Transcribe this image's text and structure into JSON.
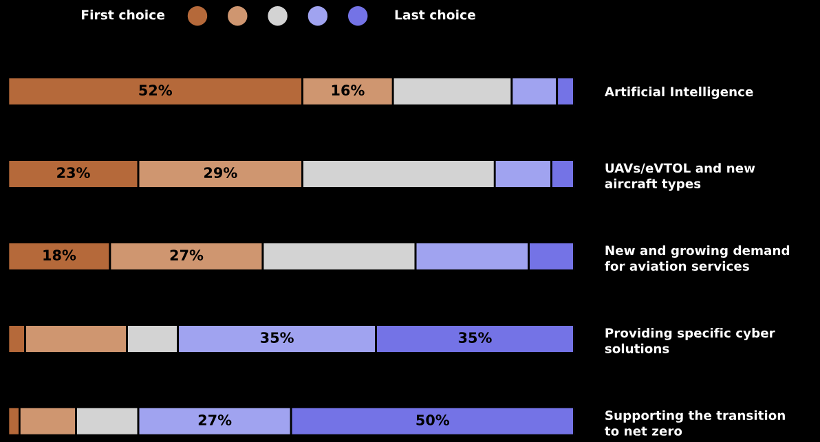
{
  "chart_data": {
    "type": "bar",
    "orientation": "horizontal",
    "stacked": true,
    "categories": [
      "Artificial Intelligence",
      "UAVs/eVTOL and new\naircraft types",
      "New and growing demand\nfor aviation services",
      "Providing specific cyber\nsolutions",
      "Supporting the transition\nto net zero"
    ],
    "series": [
      {
        "color": "#b5693a",
        "values": [
          52,
          23,
          18,
          3,
          2
        ],
        "value_labels": [
          "52%",
          "23%",
          "18%",
          null,
          null
        ]
      },
      {
        "color": "#cf9670",
        "values": [
          16,
          29,
          27,
          18,
          10
        ],
        "value_labels": [
          "16%",
          "29%",
          "27%",
          null,
          null
        ]
      },
      {
        "color": "#d3d3d3",
        "values": [
          21,
          34,
          27,
          9,
          11
        ],
        "value_labels": [
          null,
          null,
          null,
          null,
          null
        ]
      },
      {
        "color": "#a0a3f0",
        "values": [
          8,
          10,
          20,
          35,
          27
        ],
        "value_labels": [
          null,
          null,
          null,
          "35%",
          "27%"
        ]
      },
      {
        "color": "#7473e6",
        "values": [
          3,
          4,
          8,
          35,
          50
        ],
        "value_labels": [
          null,
          null,
          null,
          "35%",
          "50%"
        ]
      }
    ],
    "xlim": [
      0,
      100
    ],
    "tick_labels": "y",
    "grid": false,
    "annotations": [
      "First choice",
      "Last choice"
    ]
  }
}
